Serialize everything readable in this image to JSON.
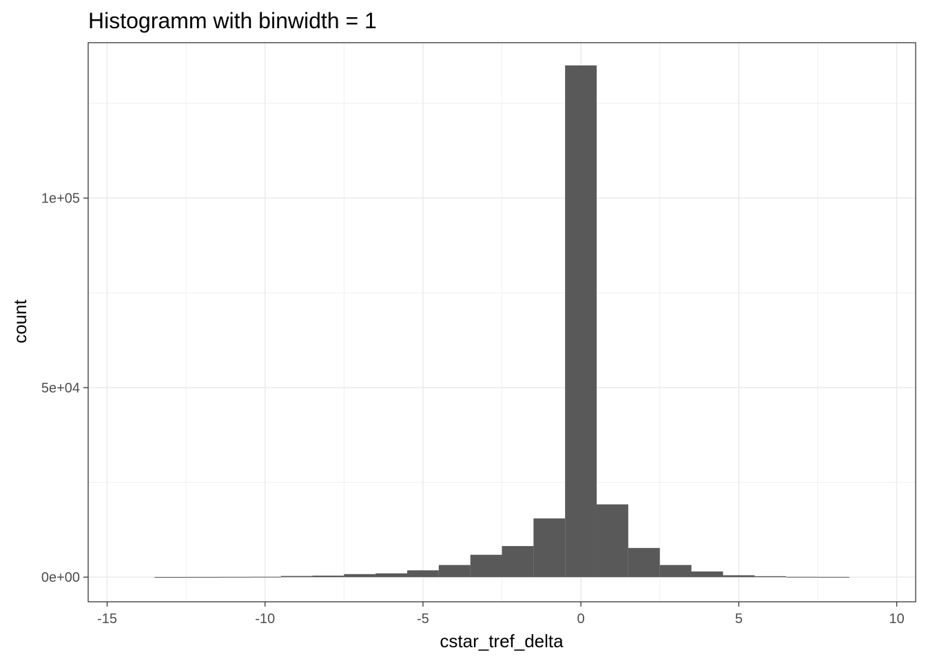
{
  "chart_data": {
    "type": "bar",
    "title": "Histogramm with binwidth = 1",
    "xlabel": "cstar_tref_delta",
    "ylabel": "count",
    "xlim": [
      -15.6,
      10.6
    ],
    "ylim": [
      -6500,
      141000
    ],
    "x_ticks": [
      -15,
      -10,
      -5,
      0,
      5,
      10
    ],
    "x_tick_labels": [
      "-15",
      "-10",
      "-5",
      "0",
      "5",
      "10"
    ],
    "y_ticks": [
      0,
      50000,
      100000
    ],
    "y_tick_labels": [
      "0e+00",
      "5e+04",
      "1e+05"
    ],
    "y_minor_ticks": [
      25000,
      75000,
      125000
    ],
    "x_minor_ticks": [
      -12.5,
      -7.5,
      -2.5,
      2.5,
      7.5
    ],
    "binwidth": 1,
    "bins": [
      {
        "x": -13,
        "count": 40
      },
      {
        "x": -12,
        "count": 50
      },
      {
        "x": -11,
        "count": 70
      },
      {
        "x": -10,
        "count": 100
      },
      {
        "x": -9,
        "count": 300
      },
      {
        "x": -8,
        "count": 400
      },
      {
        "x": -7,
        "count": 800
      },
      {
        "x": -6,
        "count": 1000
      },
      {
        "x": -5,
        "count": 1800
      },
      {
        "x": -4,
        "count": 3200
      },
      {
        "x": -3,
        "count": 5900
      },
      {
        "x": -2,
        "count": 8200
      },
      {
        "x": -1,
        "count": 15500
      },
      {
        "x": 0,
        "count": 135000
      },
      {
        "x": 1,
        "count": 19200
      },
      {
        "x": 2,
        "count": 7700
      },
      {
        "x": 3,
        "count": 3200
      },
      {
        "x": 4,
        "count": 1500
      },
      {
        "x": 5,
        "count": 500
      },
      {
        "x": 6,
        "count": 250
      },
      {
        "x": 7,
        "count": 80
      },
      {
        "x": 8,
        "count": 60
      }
    ],
    "bar_color": "#595959",
    "grid": true,
    "grid_color": "#ebebeb",
    "panel_border_color": "#333333",
    "legend": "none"
  }
}
